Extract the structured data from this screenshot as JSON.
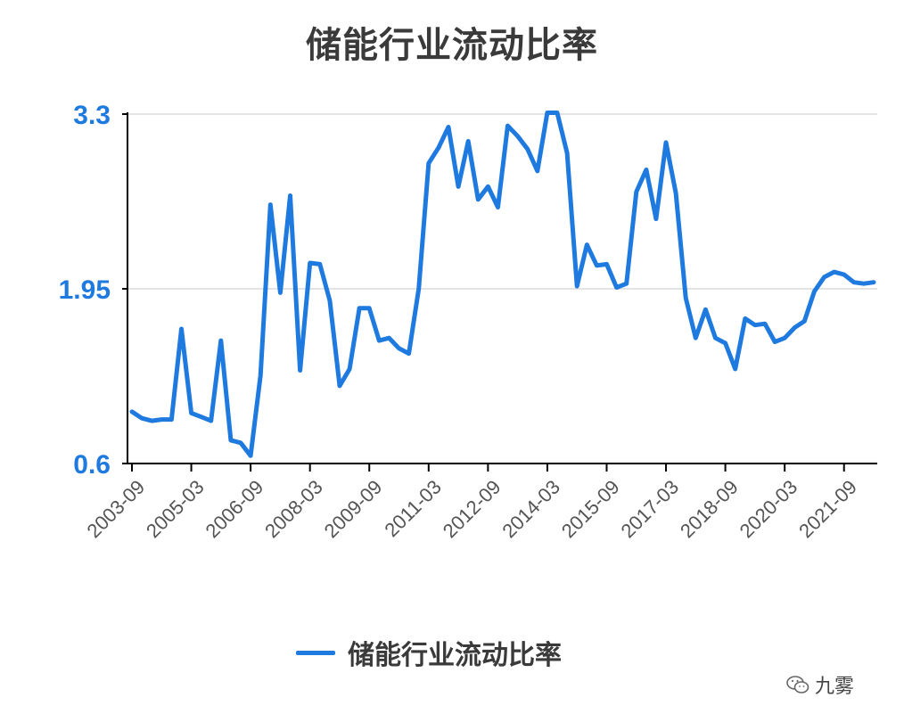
{
  "chart_data": {
    "type": "line",
    "title": "储能行业流动比率",
    "ylim": [
      0.6,
      3.3
    ],
    "y_ticks": [
      "0.6",
      "1.95",
      "3.3"
    ],
    "x_tick_labels": [
      "2003-09",
      "2005-03",
      "2006-09",
      "2008-03",
      "2009-09",
      "2011-03",
      "2012-09",
      "2014-03",
      "2015-09",
      "2017-03",
      "2018-09",
      "2020-03",
      "2021-09"
    ],
    "grid": true,
    "legend_position": "bottom",
    "colors": {
      "series": "#1f7ae0",
      "axis": "#000000",
      "grid": "#e3e3e3"
    },
    "series": [
      {
        "name": "储能行业流动比率",
        "values": [
          1.0,
          0.95,
          0.93,
          0.94,
          0.94,
          1.64,
          0.99,
          0.96,
          0.93,
          1.55,
          0.78,
          0.76,
          0.66,
          1.28,
          2.6,
          1.92,
          2.67,
          1.32,
          2.15,
          2.14,
          1.86,
          1.2,
          1.33,
          1.8,
          1.8,
          1.55,
          1.57,
          1.49,
          1.45,
          1.95,
          2.92,
          3.04,
          3.2,
          2.74,
          3.09,
          2.64,
          2.74,
          2.58,
          3.21,
          3.13,
          3.03,
          2.86,
          3.31,
          3.31,
          3.0,
          1.97,
          2.29,
          2.13,
          2.14,
          1.96,
          1.99,
          2.7,
          2.87,
          2.49,
          3.08,
          2.69,
          1.88,
          1.57,
          1.79,
          1.57,
          1.53,
          1.33,
          1.72,
          1.67,
          1.68,
          1.54,
          1.57,
          1.65,
          1.7,
          1.93,
          2.04,
          2.08,
          2.06,
          2.0,
          1.99,
          2.0
        ]
      }
    ]
  },
  "legend": {
    "label": "储能行业流动比率"
  },
  "watermark": {
    "text": "九雾",
    "icon": "wechat-icon"
  }
}
